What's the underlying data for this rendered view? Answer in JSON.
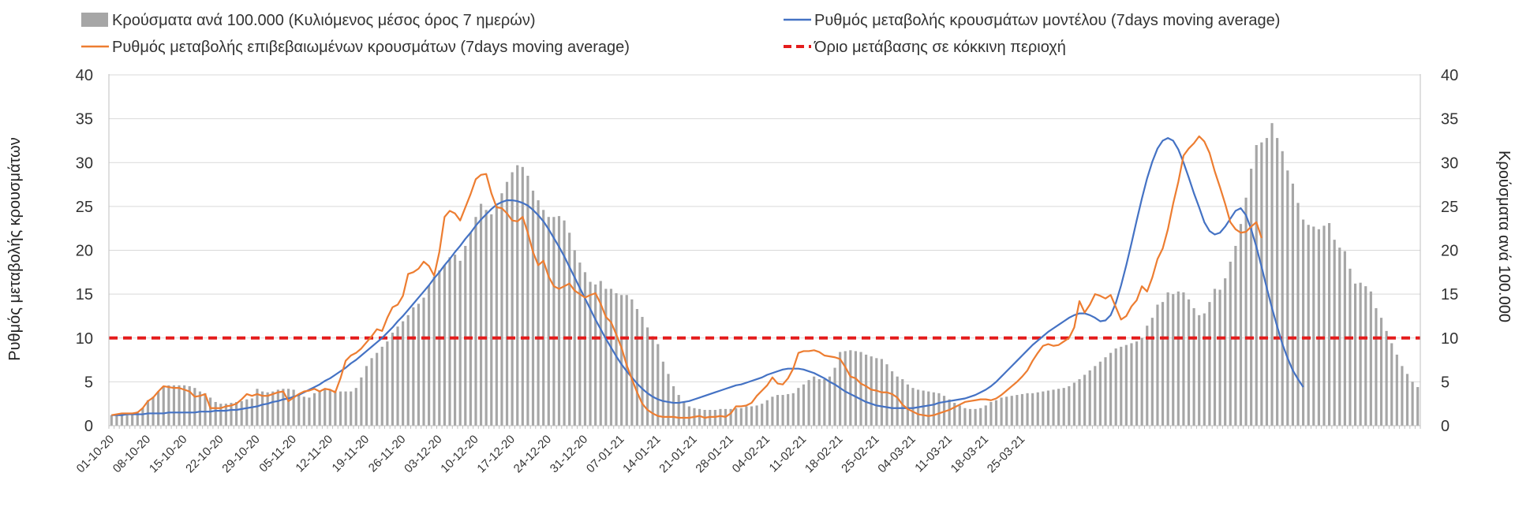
{
  "chart_data": {
    "type": "bar+line",
    "title": "",
    "y_left_label": "Ρυθμός μεταβολής κρουσμάτων",
    "y_right_label": "Κρούσματα ανά 100.000",
    "ylim": [
      0,
      40
    ],
    "y_ticks": [
      0,
      5,
      10,
      15,
      20,
      25,
      30,
      35,
      40
    ],
    "grid": "horizontal",
    "legend_position": "top",
    "x_start": "01-10-20",
    "x_tick_labels": [
      "01-10-20",
      "08-10-20",
      "15-10-20",
      "22-10-20",
      "29-10-20",
      "05-11-20",
      "12-11-20",
      "19-11-20",
      "26-11-20",
      "03-12-20",
      "10-12-20",
      "17-12-20",
      "24-12-20",
      "31-12-20",
      "07-01-21",
      "14-01-21",
      "21-01-21",
      "28-01-21",
      "04-02-21",
      "11-02-21",
      "18-02-21",
      "25-02-21",
      "04-03-21",
      "11-03-21",
      "18-03-21",
      "25-03-21"
    ],
    "threshold": {
      "name": "Όριο μετάβασης σε κόκκινη περιοχή",
      "value": 10,
      "color": "#e41c1c"
    },
    "colors": {
      "bars": "#a6a6a6",
      "model": "#4472c4",
      "confirmed": "#ed7d31"
    },
    "series": [
      {
        "name": "Κρούσματα ανά 100.000 (Κυλιόμενος μέσος όρος 7 ημερών)",
        "type": "bar",
        "values": [
          1.2,
          1.3,
          1.4,
          1.4,
          1.4,
          1.6,
          2.0,
          2.9,
          3.3,
          3.9,
          4.5,
          4.6,
          4.6,
          4.6,
          4.6,
          4.5,
          4.3,
          3.9,
          3.7,
          3.2,
          2.7,
          2.5,
          2.5,
          2.6,
          2.7,
          2.8,
          3.0,
          3.1,
          4.2,
          3.9,
          3.8,
          3.9,
          4.1,
          4.2,
          4.2,
          4.1,
          3.6,
          3.3,
          3.2,
          3.7,
          3.9,
          4.1,
          4.1,
          4.0,
          3.9,
          3.9,
          3.9,
          4.3,
          5.5,
          6.8,
          7.7,
          8.3,
          9.0,
          9.6,
          10.6,
          11.3,
          11.9,
          12.6,
          13.5,
          13.9,
          14.6,
          16.0,
          17.0,
          17.7,
          18.3,
          19.2,
          19.5,
          18.8,
          20.5,
          22.0,
          23.8,
          25.3,
          24.6,
          24.1,
          25.1,
          26.5,
          27.8,
          28.9,
          29.7,
          29.5,
          28.5,
          26.8,
          25.7,
          24.6,
          23.8,
          23.8,
          23.9,
          23.4,
          22.0,
          20.0,
          18.6,
          17.5,
          16.4,
          16.1,
          16.5,
          15.6,
          15.6,
          15.1,
          14.9,
          14.9,
          14.4,
          13.3,
          12.4,
          11.2,
          10.2,
          9.3,
          7.3,
          5.9,
          4.5,
          3.5,
          2.7,
          2.2,
          2.0,
          1.9,
          1.8,
          1.8,
          1.8,
          1.9,
          1.9,
          1.9,
          2.0,
          2.0,
          2.2,
          2.2,
          2.3,
          2.5,
          2.9,
          3.3,
          3.5,
          3.5,
          3.6,
          3.7,
          4.3,
          4.7,
          5.2,
          5.6,
          5.3,
          5.3,
          5.6,
          6.6,
          8.4,
          8.5,
          8.6,
          8.5,
          8.4,
          8.1,
          7.9,
          7.7,
          7.6,
          7.0,
          6.2,
          5.6,
          5.3,
          4.7,
          4.3,
          4.1,
          4.0,
          3.9,
          3.8,
          3.7,
          3.4,
          3.0,
          2.6,
          2.3,
          2.0,
          1.9,
          1.9,
          2.0,
          2.3,
          2.7,
          2.9,
          3.2,
          3.3,
          3.4,
          3.5,
          3.6,
          3.7,
          3.7,
          3.8,
          3.9,
          4.0,
          4.1,
          4.2,
          4.3,
          4.5,
          4.9,
          5.3,
          5.8,
          6.3,
          6.8,
          7.3,
          7.8,
          8.3,
          8.8,
          9.0,
          9.2,
          9.4,
          9.6,
          10.0,
          11.4,
          12.3,
          13.8,
          14.1,
          15.2,
          15.0,
          15.3,
          15.2,
          14.4,
          13.4,
          12.6,
          12.8,
          14.1,
          15.6,
          15.5,
          16.8,
          18.7,
          20.5,
          23.0,
          26.0,
          29.3,
          32.0,
          32.3,
          32.8,
          34.5,
          32.8,
          31.3,
          29.1,
          27.6,
          25.4,
          23.5,
          22.9,
          22.7,
          22.4,
          22.8,
          23.1,
          21.2,
          20.3,
          19.9,
          17.9,
          16.2,
          16.3,
          15.9,
          15.3,
          13.4,
          12.3,
          10.8,
          9.4,
          8.1,
          6.8,
          5.9,
          5.0,
          4.4
        ]
      },
      {
        "name": "Ρυθμός μεταβολής κρουσμάτων μοντέλου (7days moving average)",
        "type": "line",
        "values": [
          1.2,
          1.2,
          1.2,
          1.3,
          1.3,
          1.3,
          1.3,
          1.4,
          1.4,
          1.4,
          1.4,
          1.5,
          1.5,
          1.5,
          1.5,
          1.5,
          1.5,
          1.6,
          1.6,
          1.6,
          1.7,
          1.7,
          1.7,
          1.8,
          1.8,
          1.9,
          2.0,
          2.1,
          2.2,
          2.4,
          2.5,
          2.7,
          2.8,
          3.0,
          3.1,
          3.3,
          3.5,
          3.8,
          4.1,
          4.4,
          4.7,
          5.1,
          5.4,
          5.8,
          6.2,
          6.6,
          7.1,
          7.5,
          8.0,
          8.5,
          9.0,
          9.5,
          10.0,
          10.6,
          11.2,
          11.9,
          12.5,
          13.2,
          13.9,
          14.6,
          15.3,
          16.0,
          16.8,
          17.5,
          18.3,
          19.0,
          19.8,
          20.5,
          21.3,
          22.0,
          22.8,
          23.5,
          24.1,
          24.7,
          25.2,
          25.5,
          25.7,
          25.7,
          25.6,
          25.4,
          25.1,
          24.6,
          24.0,
          23.3,
          22.4,
          21.4,
          20.4,
          19.3,
          18.1,
          16.9,
          15.7,
          14.5,
          13.3,
          12.1,
          11.0,
          9.9,
          8.9,
          7.9,
          7.0,
          6.2,
          5.5,
          4.8,
          4.2,
          3.7,
          3.3,
          3.0,
          2.8,
          2.7,
          2.6,
          2.6,
          2.7,
          2.8,
          3.0,
          3.2,
          3.4,
          3.6,
          3.8,
          4.0,
          4.2,
          4.4,
          4.6,
          4.7,
          4.9,
          5.1,
          5.3,
          5.5,
          5.8,
          6.0,
          6.2,
          6.4,
          6.5,
          6.5,
          6.5,
          6.4,
          6.2,
          6.0,
          5.7,
          5.4,
          5.0,
          4.7,
          4.3,
          3.9,
          3.6,
          3.3,
          3.0,
          2.7,
          2.5,
          2.3,
          2.2,
          2.1,
          2.0,
          2.0,
          2.0,
          2.0,
          2.0,
          2.1,
          2.2,
          2.3,
          2.4,
          2.6,
          2.7,
          2.8,
          2.9,
          3.0,
          3.1,
          3.3,
          3.5,
          3.8,
          4.1,
          4.5,
          5.0,
          5.6,
          6.2,
          6.8,
          7.4,
          8.0,
          8.6,
          9.2,
          9.7,
          10.2,
          10.7,
          11.1,
          11.5,
          11.9,
          12.3,
          12.6,
          12.8,
          12.8,
          12.6,
          12.3,
          11.9,
          12.0,
          12.6,
          14.0,
          16.0,
          18.3,
          20.8,
          23.4,
          25.9,
          28.2,
          30.1,
          31.6,
          32.5,
          32.8,
          32.5,
          31.5,
          30.0,
          28.3,
          26.5,
          24.9,
          23.2,
          22.2,
          21.8,
          22.0,
          22.7,
          23.6,
          24.5,
          24.8,
          24.0,
          22.4,
          20.4,
          18.1,
          15.7,
          13.4,
          11.3,
          9.3,
          7.7,
          6.3,
          5.3,
          4.4
        ]
      },
      {
        "name": "Ρυθμός μεταβολής επιβεβαιωμένων κρουσμάτων (7days moving average)",
        "type": "line",
        "values": [
          1.2,
          1.3,
          1.4,
          1.4,
          1.4,
          1.5,
          2.0,
          2.8,
          3.2,
          3.9,
          4.5,
          4.4,
          4.3,
          4.3,
          4.1,
          3.9,
          3.3,
          3.4,
          3.6,
          2.0,
          2.0,
          2.0,
          2.2,
          2.3,
          2.5,
          3.0,
          3.6,
          3.4,
          3.6,
          3.4,
          3.4,
          3.6,
          3.8,
          3.9,
          2.8,
          3.2,
          3.6,
          3.9,
          4.0,
          4.2,
          3.9,
          4.2,
          4.1,
          3.8,
          5.4,
          7.4,
          8.0,
          8.3,
          8.8,
          9.5,
          10.2,
          11.0,
          10.8,
          12.3,
          13.5,
          13.8,
          14.8,
          17.3,
          17.5,
          17.9,
          18.7,
          18.2,
          17.1,
          19.8,
          23.8,
          24.5,
          24.2,
          23.4,
          24.9,
          26.4,
          28.1,
          28.6,
          28.7,
          26.5,
          24.9,
          24.8,
          24.2,
          23.4,
          23.3,
          23.8,
          22.0,
          19.8,
          18.3,
          18.8,
          17.0,
          15.9,
          15.6,
          15.9,
          16.2,
          15.4,
          15.0,
          14.6,
          14.9,
          15.1,
          13.9,
          12.4,
          11.8,
          10.4,
          8.9,
          6.9,
          5.3,
          3.8,
          2.5,
          1.8,
          1.4,
          1.1,
          1.0,
          1.0,
          1.0,
          0.9,
          0.9,
          0.9,
          1.0,
          1.1,
          0.9,
          1.0,
          1.0,
          1.1,
          1.0,
          1.4,
          2.2,
          2.2,
          2.3,
          2.6,
          3.4,
          4.0,
          4.6,
          5.5,
          4.8,
          4.7,
          5.4,
          6.5,
          8.3,
          8.5,
          8.5,
          8.6,
          8.4,
          8.0,
          7.9,
          7.8,
          7.6,
          6.7,
          5.6,
          5.4,
          4.8,
          4.5,
          4.1,
          4.0,
          3.8,
          3.8,
          3.6,
          3.2,
          2.4,
          1.9,
          1.6,
          1.3,
          1.2,
          1.1,
          1.2,
          1.4,
          1.6,
          1.8,
          2.1,
          2.4,
          2.7,
          2.8,
          2.9,
          3.0,
          3.0,
          2.9,
          3.1,
          3.5,
          4.0,
          4.5,
          5.0,
          5.6,
          6.3,
          7.4,
          8.3,
          9.1,
          9.3,
          9.1,
          9.2,
          9.6,
          10.0,
          11.2,
          14.2,
          12.9,
          13.8,
          15.0,
          14.8,
          14.5,
          14.9,
          13.5,
          12.1,
          12.5,
          13.6,
          14.3,
          15.9,
          15.3,
          16.9,
          19.0,
          20.2,
          22.4,
          25.3,
          27.8,
          30.8,
          31.6,
          32.2,
          33.0,
          32.4,
          31.1,
          29.0,
          27.2,
          25.3,
          23.2,
          22.4,
          22.0,
          22.1,
          22.7,
          23.2,
          21.4
        ]
      }
    ]
  },
  "legend": {
    "bars": "Κρούσματα ανά 100.000 (Κυλιόμενος μέσος όρος 7 ημερών)",
    "model": "Ρυθμός μεταβολής κρουσμάτων μοντέλου (7days moving average)",
    "confirmed": "Ρυθμός μεταβολής επιβεβαιωμένων κρουσμάτων (7days moving average)",
    "threshold": "Όριο μετάβασης σε κόκκινη περιοχή"
  }
}
